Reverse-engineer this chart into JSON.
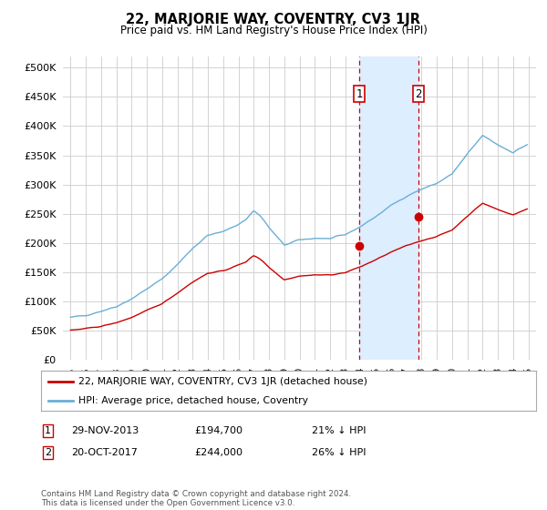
{
  "title": "22, MARJORIE WAY, COVENTRY, CV3 1JR",
  "subtitle": "Price paid vs. HM Land Registry's House Price Index (HPI)",
  "legend_line1": "22, MARJORIE WAY, COVENTRY, CV3 1JR (detached house)",
  "legend_line2": "HPI: Average price, detached house, Coventry",
  "footer": "Contains HM Land Registry data © Crown copyright and database right 2024.\nThis data is licensed under the Open Government Licence v3.0.",
  "sale1_date": "29-NOV-2013",
  "sale1_price": "£194,700",
  "sale1_note": "21% ↓ HPI",
  "sale2_date": "20-OCT-2017",
  "sale2_price": "£244,000",
  "sale2_note": "26% ↓ HPI",
  "sale1_x": 2013.91,
  "sale1_y": 194700,
  "sale2_x": 2017.8,
  "sale2_y": 244000,
  "hpi_color": "#6baed6",
  "price_color": "#cc0000",
  "shade_color": "#ddeeff",
  "vline_color": "#cc0000",
  "background_color": "#ffffff",
  "grid_color": "#cccccc",
  "ylim": [
    0,
    520000
  ],
  "xlim": [
    1994.5,
    2025.5
  ],
  "yticks": [
    0,
    50000,
    100000,
    150000,
    200000,
    250000,
    300000,
    350000,
    400000,
    450000,
    500000
  ],
  "ytick_labels": [
    "£0",
    "£50K",
    "£100K",
    "£150K",
    "£200K",
    "£250K",
    "£300K",
    "£350K",
    "£400K",
    "£450K",
    "£500K"
  ],
  "xticks": [
    1995,
    1996,
    1997,
    1998,
    1999,
    2000,
    2001,
    2002,
    2003,
    2004,
    2005,
    2006,
    2007,
    2008,
    2009,
    2010,
    2011,
    2012,
    2013,
    2014,
    2015,
    2016,
    2017,
    2018,
    2019,
    2020,
    2021,
    2022,
    2023,
    2024,
    2025
  ],
  "hpi_y_annual": [
    72000,
    76000,
    83000,
    91000,
    104000,
    121000,
    138000,
    163000,
    191000,
    213000,
    219000,
    232000,
    248000,
    226000,
    196000,
    205000,
    208000,
    207000,
    214000,
    228000,
    245000,
    264000,
    280000,
    292000,
    302000,
    318000,
    352000,
    384000,
    368000,
    355000,
    370000
  ],
  "price_y_annual": [
    50000,
    53000,
    57000,
    63000,
    72000,
    84000,
    96000,
    114000,
    133000,
    148000,
    152000,
    162000,
    173000,
    158000,
    137000,
    143000,
    145000,
    145000,
    149000,
    159000,
    171000,
    184000,
    195000,
    204000,
    211000,
    222000,
    246000,
    268000,
    257000,
    248000,
    259000
  ]
}
